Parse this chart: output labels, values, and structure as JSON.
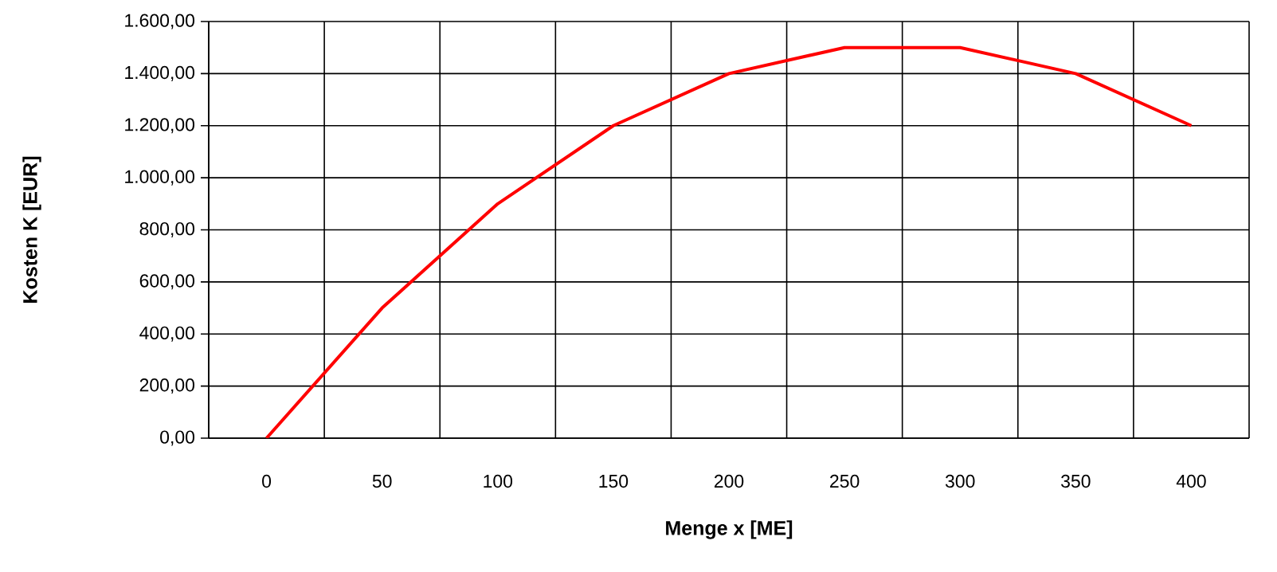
{
  "chart_data": {
    "type": "line",
    "xlabel": "Menge x [ME]",
    "ylabel": "Kosten K [EUR]",
    "categories": [
      "0",
      "50",
      "100",
      "150",
      "200",
      "250",
      "300",
      "350",
      "400"
    ],
    "series": [
      {
        "color": "#ff0000",
        "values": [
          0,
          500,
          900,
          1200,
          1400,
          1500,
          1500,
          1400,
          1200
        ]
      }
    ],
    "ylim": [
      0,
      1600
    ],
    "yticks": [
      {
        "value": 0,
        "label": "0,00"
      },
      {
        "value": 200,
        "label": "200,00"
      },
      {
        "value": 400,
        "label": "400,00"
      },
      {
        "value": 600,
        "label": "600,00"
      },
      {
        "value": 800,
        "label": "800,00"
      },
      {
        "value": 1000,
        "label": "1.000,00"
      },
      {
        "value": 1200,
        "label": "1.200,00"
      },
      {
        "value": 1400,
        "label": "1.400,00"
      },
      {
        "value": 1600,
        "label": "1.600,00"
      }
    ],
    "grid": true,
    "marker": "none",
    "line_style": "solid"
  }
}
